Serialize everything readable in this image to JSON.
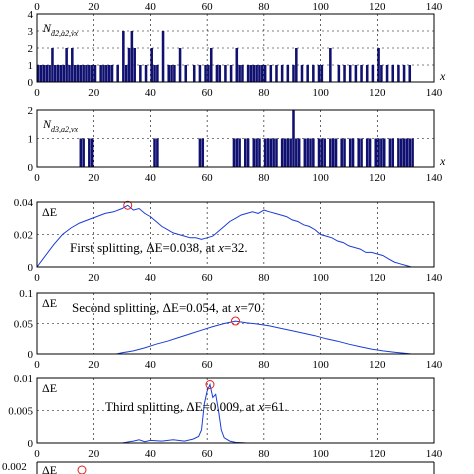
{
  "chart_data": [
    {
      "type": "bar",
      "ylabel_main": "N",
      "ylabel_sub": "d2,a2,vx",
      "xlabel": "x",
      "xlim": [
        0,
        140
      ],
      "ylim": [
        0,
        4
      ],
      "xticks": [
        0,
        20,
        40,
        60,
        80,
        100,
        120,
        140
      ],
      "yticks": [
        0,
        1,
        2,
        3,
        4
      ],
      "grid": true,
      "x": [
        0,
        1,
        2,
        3,
        4,
        5,
        6,
        7,
        8,
        9,
        10,
        11,
        12,
        13,
        14,
        15,
        16,
        17,
        18,
        19,
        20,
        22,
        23,
        24,
        25,
        26,
        28,
        30,
        31,
        32,
        33,
        34,
        36,
        38,
        40,
        41,
        42,
        44,
        46,
        47,
        48,
        50,
        52,
        55,
        57,
        59,
        60,
        61,
        63,
        64,
        66,
        68,
        70,
        71,
        72,
        74,
        75,
        76,
        77,
        78,
        79,
        80,
        82,
        84,
        86,
        88,
        90,
        91,
        93,
        95,
        97,
        99,
        100,
        103,
        106,
        108,
        110,
        112,
        114,
        116,
        118,
        120,
        121,
        123,
        125,
        127,
        129,
        131
      ],
      "values": [
        1,
        1,
        1,
        1,
        1,
        2,
        1,
        1,
        1,
        1,
        2,
        1,
        2,
        1,
        1,
        1,
        1,
        1,
        1,
        1,
        1,
        1,
        1,
        1,
        1,
        1,
        1,
        3,
        1,
        2,
        3,
        2,
        1,
        1,
        2,
        1,
        1,
        3,
        1,
        1,
        1,
        2,
        1,
        1,
        1,
        1,
        1,
        2,
        1,
        1,
        1,
        1,
        2,
        1,
        1,
        1,
        1,
        1,
        1,
        1,
        1,
        1,
        1,
        1,
        1,
        1,
        1,
        2,
        1,
        1,
        1,
        1,
        1,
        2,
        1,
        1,
        1,
        1,
        1,
        1,
        1,
        2,
        1,
        1,
        1,
        1,
        1,
        1
      ]
    },
    {
      "type": "bar",
      "ylabel_main": "N",
      "ylabel_sub": "d3,a2,vx",
      "xlabel": "x",
      "xlim": [
        0,
        140
      ],
      "ylim": [
        0,
        2
      ],
      "xticks": [
        0,
        20,
        40,
        60,
        80,
        100,
        120,
        140
      ],
      "yticks": [
        0,
        1,
        2
      ],
      "grid": true,
      "x": [
        15,
        16,
        18,
        19,
        41,
        42,
        57,
        58,
        69,
        70,
        71,
        73,
        74,
        76,
        77,
        78,
        80,
        81,
        82,
        83,
        84,
        86,
        87,
        88,
        89,
        90,
        91,
        92,
        94,
        95,
        96,
        97,
        99,
        100,
        101,
        103,
        104,
        105,
        107,
        108,
        110,
        111,
        113,
        114,
        116,
        117,
        119,
        120,
        121,
        122,
        124,
        125,
        127,
        128,
        129,
        130,
        131,
        132
      ],
      "values": [
        1,
        1,
        1,
        1,
        1,
        1,
        1,
        1,
        1,
        1,
        1,
        1,
        1,
        1,
        1,
        1,
        1,
        1,
        1,
        1,
        1,
        1,
        1,
        1,
        1,
        2,
        1,
        1,
        1,
        1,
        1,
        1,
        1,
        1,
        1,
        1,
        1,
        1,
        1,
        1,
        1,
        1,
        1,
        1,
        1,
        1,
        1,
        1,
        1,
        1,
        1,
        1,
        1,
        1,
        1,
        1,
        1,
        1
      ]
    },
    {
      "type": "line",
      "ylabel": "ΔE",
      "xlim": [
        0,
        140
      ],
      "ylim": [
        0,
        0.04
      ],
      "xticks": [
        0,
        20,
        40,
        60,
        80,
        100,
        120,
        140
      ],
      "yticks": [
        0,
        0.02,
        0.04
      ],
      "ytick_labels": [
        "0",
        "0.02",
        "0.04"
      ],
      "grid": true,
      "x": [
        0,
        3,
        6,
        9,
        12,
        15,
        18,
        21,
        24,
        27,
        30,
        32,
        34,
        36,
        38,
        40,
        42,
        44,
        46,
        48,
        50,
        52,
        54,
        56,
        58,
        60,
        62,
        64,
        66,
        68,
        70,
        72,
        74,
        76,
        78,
        80,
        82,
        84,
        86,
        88,
        90,
        92,
        94,
        96,
        98,
        100,
        102,
        104,
        106,
        108,
        110,
        112,
        114,
        116,
        118,
        120,
        122,
        124,
        126,
        128,
        130,
        132
      ],
      "y": [
        0,
        0.007,
        0.014,
        0.02,
        0.024,
        0.027,
        0.029,
        0.031,
        0.033,
        0.034,
        0.036,
        0.038,
        0.035,
        0.036,
        0.033,
        0.031,
        0.028,
        0.025,
        0.023,
        0.021,
        0.02,
        0.019,
        0.018,
        0.018,
        0.017,
        0.018,
        0.019,
        0.022,
        0.025,
        0.028,
        0.03,
        0.032,
        0.033,
        0.034,
        0.033,
        0.035,
        0.034,
        0.033,
        0.032,
        0.031,
        0.029,
        0.028,
        0.026,
        0.025,
        0.023,
        0.02,
        0.019,
        0.018,
        0.016,
        0.015,
        0.013,
        0.012,
        0.011,
        0.009,
        0.009,
        0.008,
        0.007,
        0.005,
        0.003,
        0.002,
        0.001,
        0
      ],
      "marker": {
        "x": 32,
        "y": 0.038
      },
      "annotation_parts": [
        "First splitting, ",
        "ΔE",
        "=0.038, at ",
        "x",
        "=32."
      ]
    },
    {
      "type": "line",
      "ylabel": "ΔE",
      "xlim": [
        0,
        140
      ],
      "ylim": [
        0,
        0.1
      ],
      "xticks": [
        0,
        20,
        40,
        60,
        80,
        100,
        120,
        140
      ],
      "yticks": [
        0,
        0.05,
        0.1
      ],
      "ytick_labels": [
        "0",
        "0.05",
        "0.1"
      ],
      "grid": true,
      "x": [
        0,
        10,
        20,
        28,
        30,
        34,
        38,
        42,
        46,
        50,
        54,
        58,
        62,
        66,
        70,
        74,
        78,
        82,
        86,
        90,
        94,
        98,
        102,
        106,
        110,
        114,
        118,
        122,
        126,
        130,
        132
      ],
      "y": [
        0,
        0,
        0,
        0,
        0.002,
        0.005,
        0.01,
        0.016,
        0.021,
        0.027,
        0.033,
        0.039,
        0.045,
        0.05,
        0.054,
        0.051,
        0.049,
        0.046,
        0.042,
        0.038,
        0.034,
        0.03,
        0.025,
        0.021,
        0.016,
        0.012,
        0.008,
        0.005,
        0.003,
        0.001,
        0
      ],
      "marker": {
        "x": 70,
        "y": 0.054
      },
      "annotation_parts": [
        "Second splitting, ",
        "ΔE",
        "=0.054, at ",
        "x",
        "=70."
      ]
    },
    {
      "type": "line",
      "ylabel": "ΔE",
      "xlim": [
        0,
        140
      ],
      "ylim": [
        0,
        0.01
      ],
      "xticks": [
        0,
        20,
        40,
        60,
        80,
        100,
        120,
        140
      ],
      "yticks": [
        0,
        0.005,
        0.01
      ],
      "ytick_labels": [
        "0",
        "0.005",
        "0.01"
      ],
      "grid": true,
      "x": [
        0,
        10,
        20,
        30,
        34,
        36,
        38,
        40,
        44,
        48,
        52,
        55,
        57,
        58,
        59,
        60,
        61,
        62,
        63,
        64,
        65,
        66,
        68,
        70,
        74,
        80,
        90,
        100,
        110,
        120,
        130,
        132
      ],
      "y": [
        0,
        0,
        0,
        0,
        0.0003,
        0.0005,
        0.0002,
        0.0004,
        0.0003,
        0.0005,
        0.0003,
        0.0006,
        0.001,
        0.002,
        0.006,
        0.008,
        0.009,
        0.007,
        0.0075,
        0.005,
        0.002,
        0.0008,
        0.0003,
        0.0001,
        0,
        0,
        0,
        0,
        0,
        0,
        0,
        0
      ],
      "marker": {
        "x": 61,
        "y": 0.009
      },
      "annotation_parts": [
        "Third splitting, ",
        "ΔE",
        "=0.009, at ",
        "x",
        "=61."
      ]
    },
    {
      "type": "line",
      "ylabel": "ΔE",
      "ytick_top_partial": "0.002"
    }
  ]
}
